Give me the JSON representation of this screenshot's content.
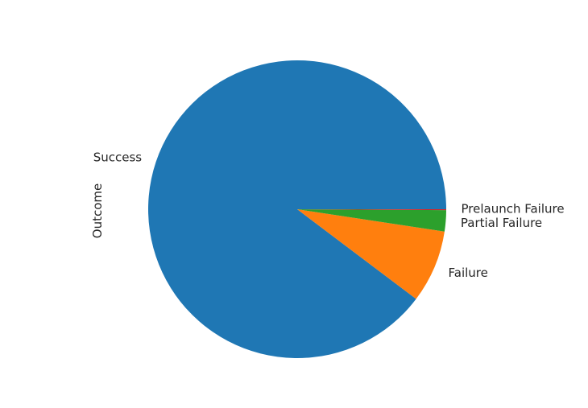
{
  "chart_data": {
    "type": "pie",
    "ylabel": "Outcome",
    "slices": [
      {
        "label": "Success",
        "value": 89.7,
        "color": "#1f77b4"
      },
      {
        "label": "Failure",
        "value": 7.9,
        "color": "#ff7f0e"
      },
      {
        "label": "Partial Failure",
        "value": 2.3,
        "color": "#2ca02c"
      },
      {
        "label": "Prelaunch Failure",
        "value": 0.1,
        "color": "#d62728"
      }
    ],
    "start_angle_deg": 0,
    "direction": "counterclockwise",
    "legend": "none"
  }
}
